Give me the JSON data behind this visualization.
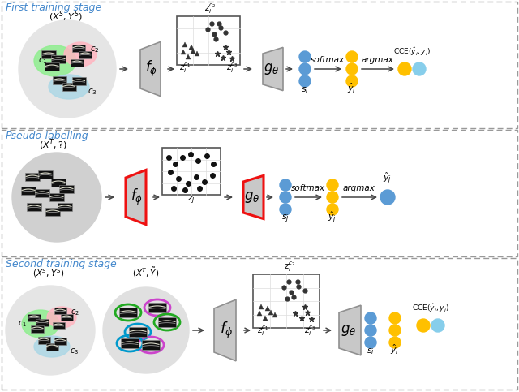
{
  "panel1_label": "First training stage",
  "panel2_label": "Pseudo-labelling",
  "panel3_label": "Second training stage",
  "orange_color": "#FFC000",
  "blue_dot_color": "#5B9BD5",
  "light_blue_circle": "#87CEEB",
  "green_ellipse": "#90EE90",
  "pink_ellipse": "#FFB6C1",
  "blue_ellipse": "#ADD8E6",
  "gray_circle": "#E5E5E5",
  "trapezoid_fill": "#C8C8C8",
  "trapezoid_edge": "#909090",
  "scatter_edge": "#555555",
  "dashed_color": "#999999",
  "red_border": "#EE1111",
  "text_blue": "#4488CC",
  "softmax_text": "softmax",
  "argmax_text": "argmax",
  "green_oval": "#22AA22",
  "magenta_oval": "#CC44CC",
  "cyan_oval": "#00AACC"
}
